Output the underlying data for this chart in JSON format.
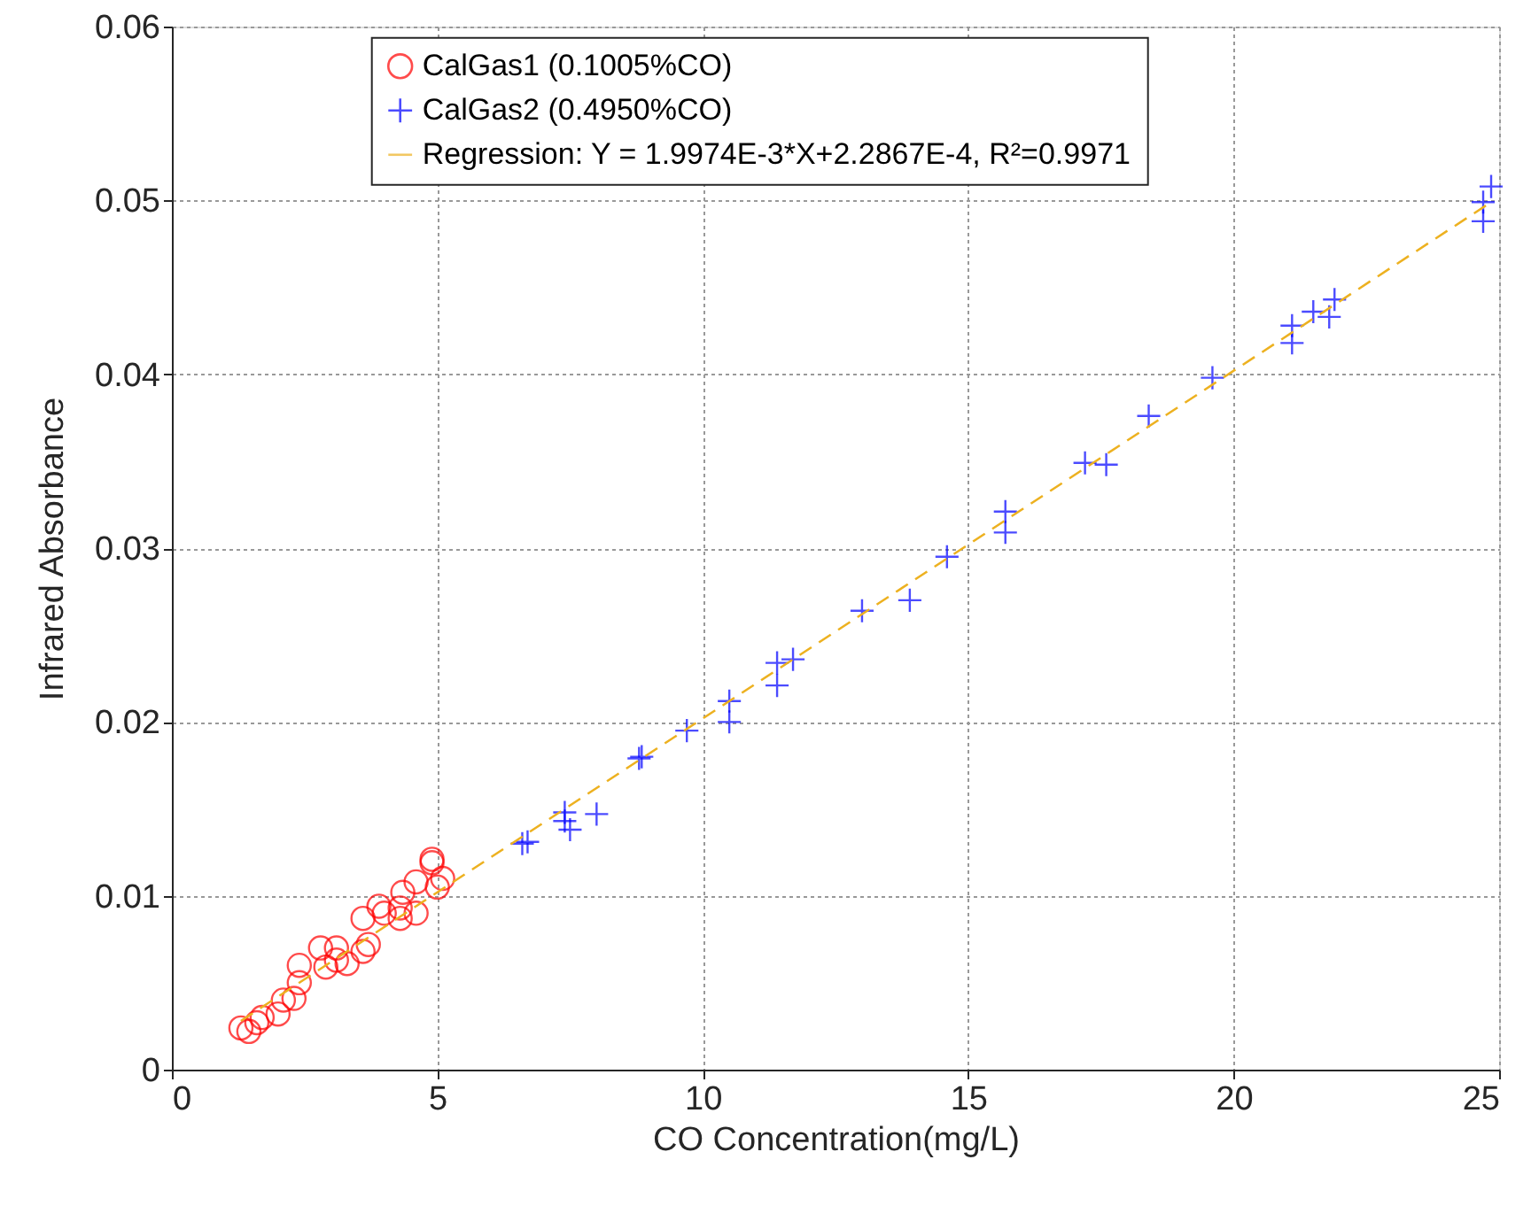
{
  "chart_data": {
    "type": "scatter",
    "xlabel": "CO Concentration(mg/L)",
    "ylabel": "Infrared Absorbance",
    "xlim": [
      0,
      25
    ],
    "xticks": [
      0,
      5,
      10,
      15,
      20,
      25
    ],
    "ylim": [
      0,
      0.06
    ],
    "yticks": [
      0,
      0.01,
      0.02,
      0.03,
      0.04,
      0.05,
      0.06
    ],
    "grid": true,
    "legend": "top",
    "series": [
      {
        "name": "CalGas1 (0.1005%CO)",
        "marker": "circle",
        "color": "#ff0000",
        "x": [
          1.3,
          1.45,
          1.6,
          1.7,
          2.0,
          2.1,
          2.3,
          2.4,
          2.4,
          2.8,
          2.9,
          3.1,
          3.1,
          3.3,
          3.6,
          3.6,
          3.7,
          3.9,
          4.0,
          4.3,
          4.3,
          4.35,
          4.6,
          4.6,
          4.9,
          4.9,
          5.0,
          5.1
        ],
        "values": [
          0.0024,
          0.0022,
          0.0027,
          0.003,
          0.0032,
          0.004,
          0.0041,
          0.005,
          0.006,
          0.007,
          0.0059,
          0.0063,
          0.007,
          0.0061,
          0.0068,
          0.0087,
          0.0072,
          0.0094,
          0.009,
          0.0087,
          0.0093,
          0.0102,
          0.0108,
          0.009,
          0.0121,
          0.0119,
          0.0105,
          0.011
        ]
      },
      {
        "name": "CalGas2 (0.4950%CO)",
        "marker": "cross",
        "color": "#0000ff",
        "x": [
          6.6,
          6.7,
          7.4,
          7.4,
          7.5,
          8.0,
          8.8,
          8.85,
          9.7,
          10.5,
          10.5,
          11.4,
          11.4,
          11.7,
          13.0,
          13.9,
          14.6,
          15.7,
          15.7,
          17.2,
          17.6,
          18.4,
          19.6,
          21.1,
          21.1,
          21.5,
          21.9,
          21.8,
          24.7,
          24.7,
          24.85
        ],
        "values": [
          0.013,
          0.0131,
          0.0148,
          0.0143,
          0.0138,
          0.0147,
          0.0179,
          0.018,
          0.0195,
          0.0212,
          0.02,
          0.0234,
          0.0221,
          0.0236,
          0.0264,
          0.027,
          0.0295,
          0.0321,
          0.0309,
          0.0349,
          0.0348,
          0.0376,
          0.0398,
          0.0428,
          0.0418,
          0.0436,
          0.0443,
          0.0433,
          0.0499,
          0.0488,
          0.0508
        ]
      },
      {
        "name": "Regression: Y = 1.9974E-3*X+2.2867E-4, R²=0.9971",
        "type": "line",
        "marker": "none",
        "line_style": "dashed",
        "color": "#edb120",
        "x": [
          1.3,
          24.8
        ],
        "values": [
          0.0028,
          0.0498
        ]
      }
    ]
  }
}
